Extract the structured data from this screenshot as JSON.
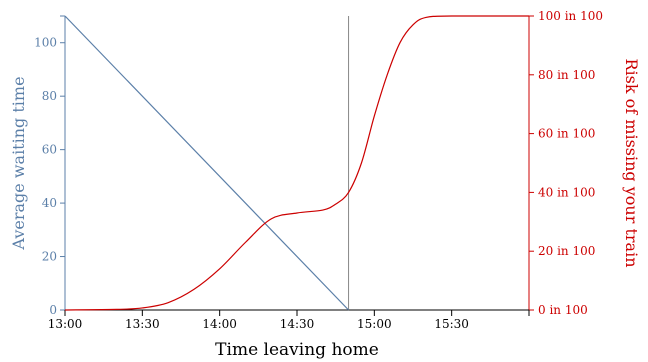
{
  "chart_data": {
    "type": "line",
    "xlabel": "Time leaving home",
    "x_ticks": [
      "13:00",
      "13:30",
      "14:00",
      "14:30",
      "15:00",
      "15:30"
    ],
    "xlim": [
      "13:00",
      "16:00"
    ],
    "marker_time": "14:50",
    "y_left": {
      "label": "Average waiting time",
      "ticks": [
        0,
        20,
        40,
        60,
        80,
        100
      ],
      "lim": [
        0,
        110
      ],
      "color": "#5b7fa8"
    },
    "y_right": {
      "label": "Risk of missing your train",
      "ticks": [
        "0 in 100",
        "20 in 100",
        "40 in 100",
        "60 in 100",
        "80 in 100",
        "100 in 100"
      ],
      "lim": [
        0,
        100
      ],
      "color": "#cc0000"
    },
    "series": [
      {
        "axis": "left",
        "color": "#5b7fa8",
        "x": [
          "13:00",
          "14:50"
        ],
        "y": [
          110,
          0
        ]
      },
      {
        "axis": "right",
        "color": "#cc0000",
        "x": [
          "13:00",
          "13:20",
          "13:30",
          "13:40",
          "13:50",
          "14:00",
          "14:10",
          "14:20",
          "14:30",
          "14:40",
          "14:45",
          "14:50",
          "14:55",
          "15:00",
          "15:05",
          "15:10",
          "15:15",
          "15:20",
          "15:30",
          "16:00"
        ],
        "y": [
          0,
          0.2,
          0.7,
          2.5,
          7,
          14,
          23,
          31,
          33,
          34,
          36,
          40,
          50,
          66,
          80,
          91,
          97,
          99.5,
          100,
          100
        ]
      }
    ]
  }
}
